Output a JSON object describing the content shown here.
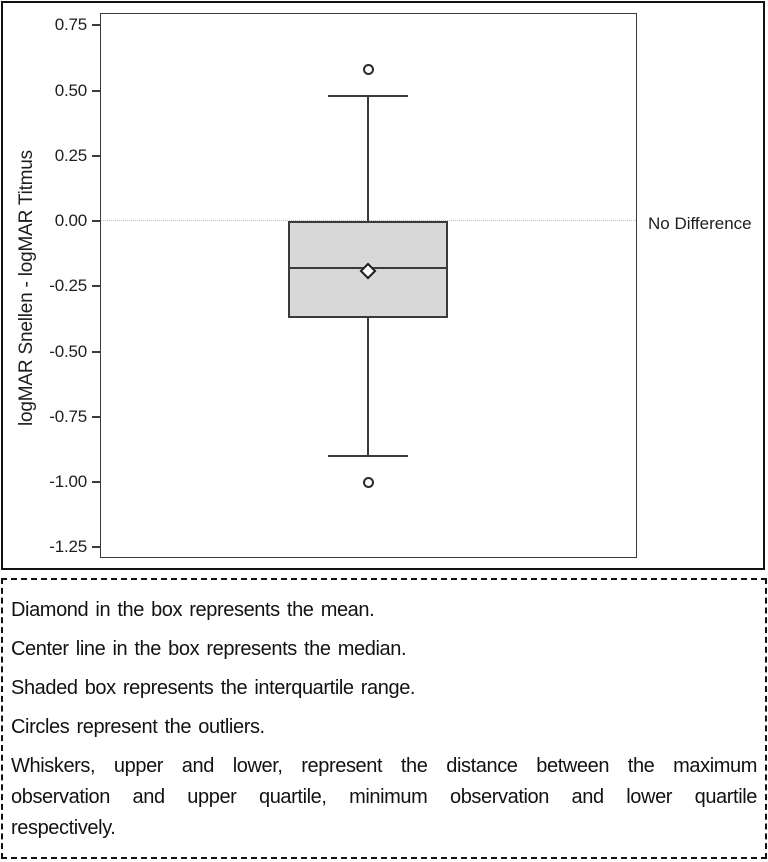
{
  "chart_data": {
    "type": "boxplot",
    "title": "",
    "xlabel": "",
    "ylabel": "logMAR Snellen - logMAR Titmus",
    "ylim": [
      -1.287,
      0.794
    ],
    "yticks": [
      0.75,
      0.5,
      0.25,
      0,
      -0.25,
      -0.5,
      -0.75,
      -1,
      -1.25
    ],
    "grid": false,
    "series": [
      {
        "name": "logMAR Snellen minus logMAR Titmus",
        "q1": -0.37,
        "median": -0.18,
        "q3": 0.0,
        "mean": -0.19,
        "whisker_low": -0.9,
        "whisker_high": 0.48,
        "outliers": [
          0.58,
          -1.0
        ]
      }
    ],
    "reference_line": {
      "value": 0.0,
      "label": "No Difference",
      "style": "dotted"
    }
  },
  "notes": {
    "paragraphs": [
      {
        "text": "Diamond in the box represents the mean.",
        "justify": false
      },
      {
        "text": "Center line in the box represents the median.",
        "justify": false
      },
      {
        "text": "Shaded box represents the interquartile range.",
        "justify": false
      },
      {
        "text": "Circles represent the outliers.",
        "justify": false
      },
      {
        "text": "Whiskers, upper and lower, represent the distance between the maximum observation and upper quartile, minimum observation and lower quartile respectively.",
        "justify": true
      }
    ]
  },
  "colors": {
    "box_fill": "#d8d8d8",
    "line": "#3a3a3a",
    "reference_line": "#bdbdbd",
    "frame": "#121212",
    "text": "#1e1e1e"
  }
}
